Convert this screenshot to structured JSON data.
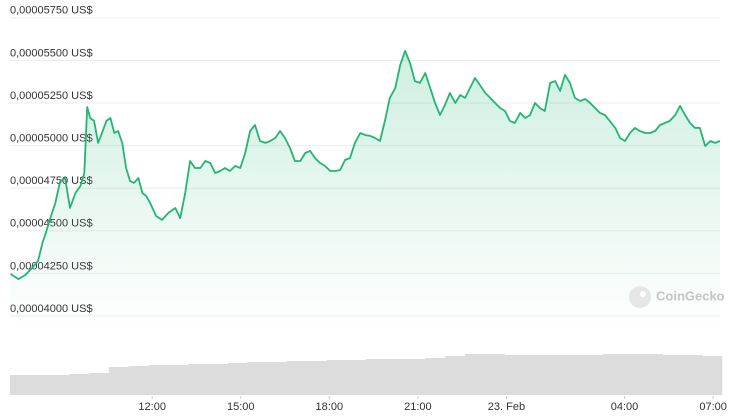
{
  "chart_data": {
    "type": "line",
    "color": "#22b573",
    "grid": true,
    "watermark": "CoinGecko",
    "xlim": [
      431,
      1874
    ],
    "xticks": [
      {
        "value": 720,
        "label": "12:00"
      },
      {
        "value": 900,
        "label": "15:00"
      },
      {
        "value": 1080,
        "label": "18:00"
      },
      {
        "value": 1260,
        "label": "21:00"
      },
      {
        "value": 1440,
        "label": "23. Feb"
      },
      {
        "value": 1680,
        "label": "04:00"
      },
      {
        "value": 1860,
        "label": "07:00"
      }
    ],
    "ylim": [
      3.918e-05,
      5.796e-05
    ],
    "yticks": [
      {
        "value": 4e-05,
        "label": "0,00004000 US$"
      },
      {
        "value": 4.25e-05,
        "label": "0,00004250 US$"
      },
      {
        "value": 4.5e-05,
        "label": "0,00004500 US$"
      },
      {
        "value": 4.75e-05,
        "label": "0,00004750 US$"
      },
      {
        "value": 5e-05,
        "label": "0,00005000 US$"
      },
      {
        "value": 5.25e-05,
        "label": "0,00005250 US$"
      },
      {
        "value": 5.5e-05,
        "label": "0,00005500 US$"
      },
      {
        "value": 5.75e-05,
        "label": "0,00005750 US$"
      }
    ],
    "x": [
      432,
      448,
      462,
      476,
      488,
      497,
      505,
      513,
      523,
      533,
      543,
      553,
      564,
      574,
      582,
      588,
      594,
      602,
      610,
      618,
      627,
      635,
      643,
      651,
      659,
      667,
      675,
      683,
      692,
      700,
      708,
      716,
      728,
      740,
      753,
      767,
      777,
      787,
      797,
      807,
      818,
      828,
      838,
      848,
      858,
      868,
      878,
      889,
      899,
      909,
      919,
      929,
      939,
      950,
      960,
      970,
      980,
      990,
      1000,
      1010,
      1021,
      1031,
      1041,
      1051,
      1061,
      1071,
      1082,
      1092,
      1102,
      1112,
      1122,
      1132,
      1143,
      1153,
      1163,
      1173,
      1183,
      1193,
      1203,
      1214,
      1224,
      1234,
      1244,
      1254,
      1264,
      1275,
      1285,
      1295,
      1305,
      1315,
      1325,
      1336,
      1346,
      1356,
      1366,
      1376,
      1386,
      1397,
      1407,
      1417,
      1427,
      1437,
      1447,
      1457,
      1468,
      1478,
      1488,
      1498,
      1508,
      1518,
      1529,
      1539,
      1549,
      1559,
      1569,
      1579,
      1590,
      1600,
      1610,
      1620,
      1630,
      1640,
      1650,
      1661,
      1671,
      1681,
      1691,
      1701,
      1711,
      1722,
      1732,
      1742,
      1752,
      1762,
      1772,
      1783,
      1793,
      1803,
      1813,
      1823,
      1833,
      1844,
      1854,
      1864,
      1874
    ],
    "values": [
      4.247e-05,
      4.217e-05,
      4.241e-05,
      4.282e-05,
      4.323e-05,
      4.429e-05,
      4.499e-05,
      4.575e-05,
      4.663e-05,
      4.792e-05,
      4.81e-05,
      4.634e-05,
      4.722e-05,
      4.763e-05,
      4.839e-05,
      5.227e-05,
      5.162e-05,
      5.145e-05,
      5.016e-05,
      5.074e-05,
      5.145e-05,
      5.162e-05,
      5.074e-05,
      5.086e-05,
      5.016e-05,
      4.869e-05,
      4.792e-05,
      4.781e-05,
      4.81e-05,
      4.722e-05,
      4.704e-05,
      4.663e-05,
      4.587e-05,
      4.564e-05,
      4.605e-05,
      4.634e-05,
      4.575e-05,
      4.722e-05,
      4.91e-05,
      4.869e-05,
      4.869e-05,
      4.91e-05,
      4.898e-05,
      4.839e-05,
      4.851e-05,
      4.869e-05,
      4.851e-05,
      4.881e-05,
      4.869e-05,
      4.957e-05,
      5.086e-05,
      5.121e-05,
      5.027e-05,
      5.016e-05,
      5.027e-05,
      5.045e-05,
      5.086e-05,
      5.045e-05,
      4.986e-05,
      4.91e-05,
      4.91e-05,
      4.957e-05,
      4.969e-05,
      4.927e-05,
      4.898e-05,
      4.881e-05,
      4.851e-05,
      4.851e-05,
      4.857e-05,
      4.916e-05,
      4.927e-05,
      5.016e-05,
      5.074e-05,
      5.062e-05,
      5.057e-05,
      5.045e-05,
      5.027e-05,
      5.145e-05,
      5.28e-05,
      5.338e-05,
      5.473e-05,
      5.556e-05,
      5.485e-05,
      5.379e-05,
      5.368e-05,
      5.426e-05,
      5.338e-05,
      5.25e-05,
      5.18e-05,
      5.239e-05,
      5.309e-05,
      5.25e-05,
      5.297e-05,
      5.28e-05,
      5.338e-05,
      5.397e-05,
      5.356e-05,
      5.309e-05,
      5.28e-05,
      5.25e-05,
      5.221e-05,
      5.203e-05,
      5.145e-05,
      5.133e-05,
      5.192e-05,
      5.162e-05,
      5.18e-05,
      5.25e-05,
      5.221e-05,
      5.203e-05,
      5.368e-05,
      5.379e-05,
      5.321e-05,
      5.415e-05,
      5.368e-05,
      5.28e-05,
      5.262e-05,
      5.274e-05,
      5.25e-05,
      5.221e-05,
      5.192e-05,
      5.18e-05,
      5.145e-05,
      5.104e-05,
      5.045e-05,
      5.027e-05,
      5.074e-05,
      5.104e-05,
      5.086e-05,
      5.074e-05,
      5.074e-05,
      5.086e-05,
      5.121e-05,
      5.133e-05,
      5.145e-05,
      5.18e-05,
      5.233e-05,
      5.18e-05,
      5.133e-05,
      5.104e-05,
      5.104e-05,
      4.998e-05,
      5.027e-05,
      5.016e-05,
      5.027e-05
    ],
    "volume": {
      "color": "#dcdcdc",
      "ylim": [
        0,
        50
      ],
      "values": [
        20,
        20,
        20,
        21,
        22,
        28,
        29,
        30,
        30,
        31,
        31,
        32,
        33,
        33,
        34,
        34,
        35,
        35,
        36,
        36,
        36,
        37,
        39,
        41,
        41,
        40,
        40,
        40,
        40,
        40,
        41,
        41,
        41,
        40,
        40,
        39
      ]
    }
  }
}
